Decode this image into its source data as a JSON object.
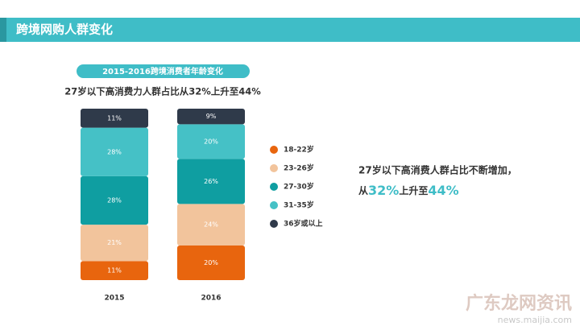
{
  "header": {
    "title": "跨境网购人群变化"
  },
  "chart_data": {
    "type": "stacked-bar",
    "title": "2015-2016跨境消费者年龄变化",
    "subtitle": "27岁以下高消费力人群占比从32%上升至44%",
    "categories": [
      "2015",
      "2016"
    ],
    "series": [
      {
        "name": "18-22岁",
        "color": "#e8650e",
        "values": [
          11,
          20
        ],
        "value_labels": [
          "11%",
          "20%"
        ]
      },
      {
        "name": "23-26岁",
        "color": "#f2c49c",
        "values": [
          21,
          24
        ],
        "value_labels": [
          "21%",
          "24%"
        ]
      },
      {
        "name": "27-30岁",
        "color": "#0f9ea1",
        "values": [
          28,
          26
        ],
        "value_labels": [
          "28%",
          "26%"
        ]
      },
      {
        "name": "31-35岁",
        "color": "#45c1c6",
        "values": [
          28,
          20
        ],
        "value_labels": [
          "28%",
          "20%"
        ]
      },
      {
        "name": "36岁或以上",
        "color": "#2f3a4a",
        "values": [
          11,
          9
        ],
        "value_labels": [
          "11%",
          "9%"
        ]
      }
    ],
    "legend": "right"
  },
  "annotation": {
    "line1": "27岁以下高消费人群占比不断增加，",
    "line2": [
      "从",
      "32%",
      "上升至",
      "44%"
    ]
  },
  "watermark": {
    "name": "广东龙网资讯",
    "url": "news.maijia.com"
  }
}
